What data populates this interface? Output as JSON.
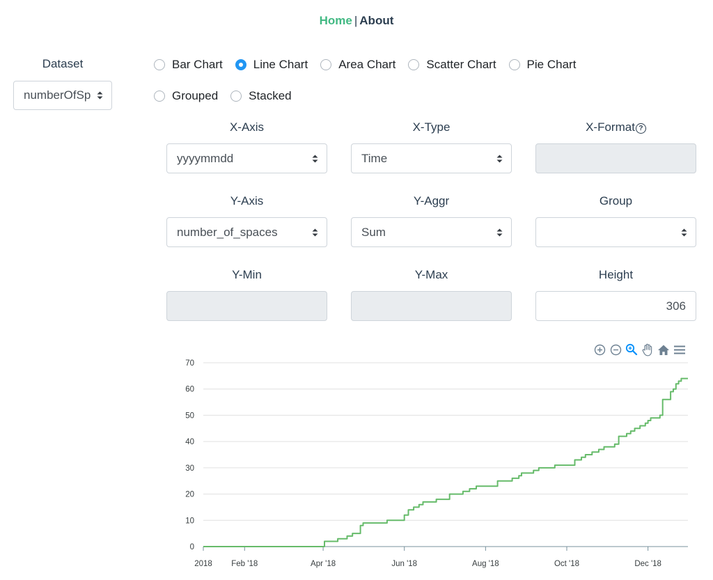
{
  "nav": {
    "home": "Home",
    "separator": "|",
    "about": "About"
  },
  "dataset": {
    "label": "Dataset",
    "value": "numberOfSp"
  },
  "chart_types": [
    {
      "label": "Bar Chart",
      "checked": false
    },
    {
      "label": "Line Chart",
      "checked": true
    },
    {
      "label": "Area Chart",
      "checked": false
    },
    {
      "label": "Scatter Chart",
      "checked": false
    },
    {
      "label": "Pie Chart",
      "checked": false
    }
  ],
  "modes": [
    {
      "label": "Grouped",
      "checked": false
    },
    {
      "label": "Stacked",
      "checked": false
    }
  ],
  "fields": {
    "x_axis": {
      "label": "X-Axis",
      "value": "yyyymmdd"
    },
    "x_type": {
      "label": "X-Type",
      "value": "Time"
    },
    "x_format": {
      "label": "X-Format",
      "help": "?",
      "value": ""
    },
    "y_axis": {
      "label": "Y-Axis",
      "value": "number_of_spaces"
    },
    "y_aggr": {
      "label": "Y-Aggr",
      "value": "Sum"
    },
    "group": {
      "label": "Group",
      "value": ""
    },
    "y_min": {
      "label": "Y-Min",
      "value": ""
    },
    "y_max": {
      "label": "Y-Max",
      "value": ""
    },
    "height": {
      "label": "Height",
      "value": "306"
    }
  },
  "toolbar": [
    "zoom-in-icon",
    "zoom-out-icon",
    "selection-zoom-icon",
    "pan-hand-icon",
    "reset-home-icon",
    "menu-icon"
  ],
  "colors": {
    "accent": "#42b983",
    "radio": "#2196f3",
    "series": "#66bb6a",
    "toolbar_active": "#008ffb"
  },
  "chart_data": {
    "type": "line",
    "title": "",
    "xlabel": "",
    "ylabel": "",
    "ylim": [
      0,
      70
    ],
    "yticks": [
      0,
      10,
      20,
      30,
      40,
      50,
      60,
      70
    ],
    "xlim": [
      "2018-01-01",
      "2018-12-31"
    ],
    "xticks": [
      {
        "label": "2018",
        "date": "2018-01-01"
      },
      {
        "label": "Feb '18",
        "date": "2018-02-01"
      },
      {
        "label": "Apr '18",
        "date": "2018-04-01"
      },
      {
        "label": "Jun '18",
        "date": "2018-06-01"
      },
      {
        "label": "Aug '18",
        "date": "2018-08-01"
      },
      {
        "label": "Oct '18",
        "date": "2018-10-01"
      },
      {
        "label": "Dec '18",
        "date": "2018-12-01"
      }
    ],
    "grid": true,
    "series": [
      {
        "step": true,
        "points": [
          [
            "2018-01-01",
            0
          ],
          [
            "2018-04-01",
            0
          ],
          [
            "2018-04-02",
            2
          ],
          [
            "2018-04-10",
            2
          ],
          [
            "2018-04-12",
            3
          ],
          [
            "2018-04-17",
            3
          ],
          [
            "2018-04-19",
            4
          ],
          [
            "2018-04-21",
            4
          ],
          [
            "2018-04-23",
            5
          ],
          [
            "2018-04-27",
            5
          ],
          [
            "2018-04-29",
            8
          ],
          [
            "2018-05-01",
            9
          ],
          [
            "2018-05-17",
            9
          ],
          [
            "2018-05-19",
            10
          ],
          [
            "2018-05-31",
            10
          ],
          [
            "2018-06-01",
            12
          ],
          [
            "2018-06-04",
            14
          ],
          [
            "2018-06-08",
            15
          ],
          [
            "2018-06-12",
            16
          ],
          [
            "2018-06-15",
            17
          ],
          [
            "2018-06-22",
            17
          ],
          [
            "2018-06-25",
            18
          ],
          [
            "2018-07-02",
            18
          ],
          [
            "2018-07-05",
            20
          ],
          [
            "2018-07-12",
            20
          ],
          [
            "2018-07-15",
            21
          ],
          [
            "2018-07-20",
            22
          ],
          [
            "2018-07-25",
            23
          ],
          [
            "2018-08-07",
            23
          ],
          [
            "2018-08-10",
            25
          ],
          [
            "2018-08-21",
            26
          ],
          [
            "2018-08-26",
            27
          ],
          [
            "2018-08-28",
            28
          ],
          [
            "2018-09-03",
            28
          ],
          [
            "2018-09-06",
            29
          ],
          [
            "2018-09-10",
            30
          ],
          [
            "2018-09-19",
            30
          ],
          [
            "2018-09-22",
            31
          ],
          [
            "2018-10-04",
            31
          ],
          [
            "2018-10-07",
            33
          ],
          [
            "2018-10-12",
            34
          ],
          [
            "2018-10-15",
            35
          ],
          [
            "2018-10-20",
            36
          ],
          [
            "2018-10-25",
            37
          ],
          [
            "2018-10-29",
            38
          ],
          [
            "2018-11-03",
            38
          ],
          [
            "2018-11-06",
            39
          ],
          [
            "2018-11-09",
            42
          ],
          [
            "2018-11-15",
            43
          ],
          [
            "2018-11-18",
            44
          ],
          [
            "2018-11-21",
            45
          ],
          [
            "2018-11-25",
            46
          ],
          [
            "2018-11-29",
            47
          ],
          [
            "2018-12-01",
            48
          ],
          [
            "2018-12-03",
            49
          ],
          [
            "2018-12-06",
            49
          ],
          [
            "2018-12-10",
            50
          ],
          [
            "2018-12-12",
            56
          ],
          [
            "2018-12-16",
            56
          ],
          [
            "2018-12-18",
            59
          ],
          [
            "2018-12-20",
            60
          ],
          [
            "2018-12-22",
            62
          ],
          [
            "2018-12-24",
            63
          ],
          [
            "2018-12-26",
            64
          ],
          [
            "2018-12-31",
            64
          ]
        ]
      }
    ]
  }
}
